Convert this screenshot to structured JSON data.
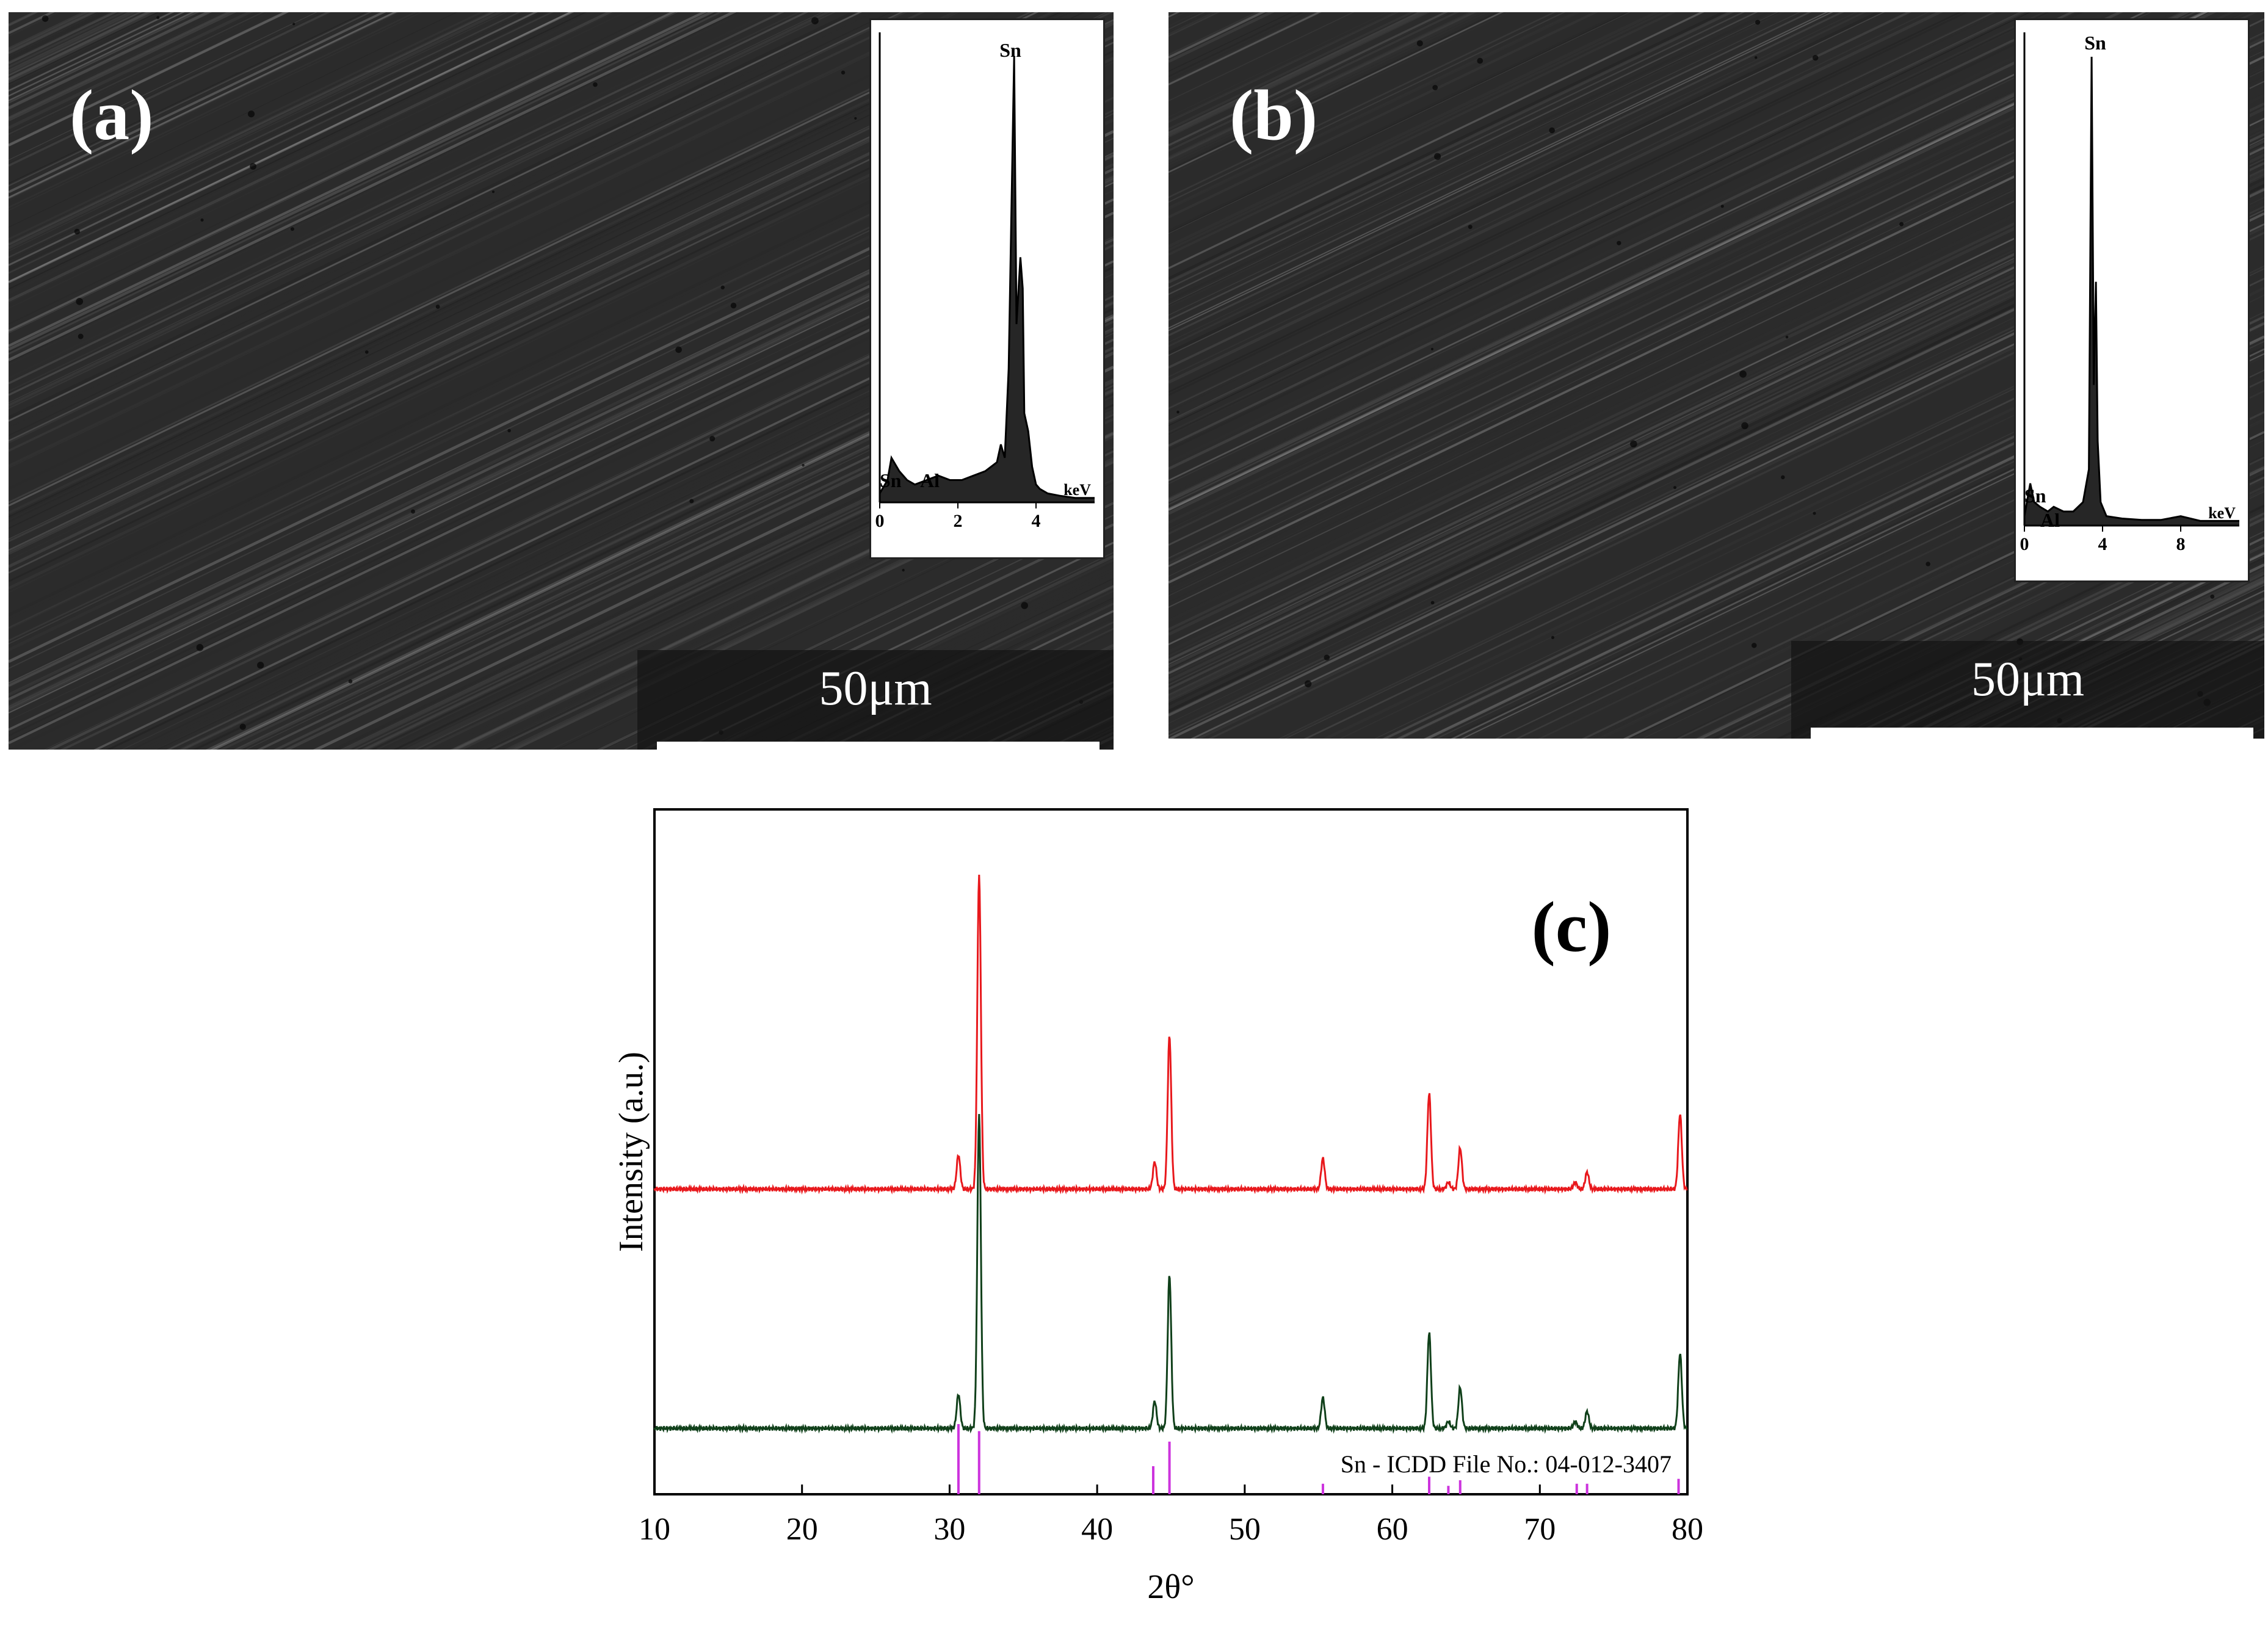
{
  "panels": {
    "a": {
      "label": "(a)",
      "scale_bar": "50μm"
    },
    "b": {
      "label": "(b)",
      "scale_bar": "50μm"
    }
  },
  "inset_a": {
    "type": "line",
    "peak_labels": [
      "Sn",
      "Sn",
      "Al"
    ],
    "xticks": [
      "0",
      "2",
      "4"
    ],
    "xunit": "keV",
    "xlim": [
      0,
      5.5
    ],
    "x": [
      0.0,
      0.2,
      0.3,
      0.5,
      0.7,
      0.9,
      1.2,
      1.5,
      1.8,
      2.1,
      2.4,
      2.7,
      3.0,
      3.1,
      3.2,
      3.3,
      3.35,
      3.44,
      3.5,
      3.6,
      3.66,
      3.7,
      3.8,
      3.9,
      4.0,
      4.1,
      4.3,
      4.6,
      5.0,
      5.5
    ],
    "y": [
      0.02,
      0.05,
      0.1,
      0.07,
      0.05,
      0.04,
      0.05,
      0.06,
      0.05,
      0.05,
      0.06,
      0.07,
      0.09,
      0.13,
      0.1,
      0.3,
      0.55,
      1.0,
      0.4,
      0.55,
      0.48,
      0.2,
      0.16,
      0.08,
      0.04,
      0.03,
      0.02,
      0.015,
      0.01,
      0.01
    ]
  },
  "inset_b": {
    "type": "line",
    "peak_labels": [
      "Sn",
      "Sn",
      "Al"
    ],
    "xticks": [
      "0",
      "4",
      "8"
    ],
    "xunit": "keV",
    "xlim": [
      0,
      11
    ],
    "x": [
      0.0,
      0.3,
      0.5,
      0.8,
      1.2,
      1.5,
      2.0,
      2.5,
      3.0,
      3.3,
      3.44,
      3.55,
      3.66,
      3.75,
      3.9,
      4.2,
      5.0,
      6.0,
      7.0,
      8.0,
      9.0,
      10.0,
      11.0
    ],
    "y": [
      0.02,
      0.09,
      0.05,
      0.04,
      0.03,
      0.04,
      0.03,
      0.03,
      0.05,
      0.12,
      1.0,
      0.3,
      0.52,
      0.18,
      0.05,
      0.02,
      0.015,
      0.012,
      0.012,
      0.02,
      0.01,
      0.01,
      0.01
    ]
  },
  "chart_data": {
    "type": "line",
    "label": "(c)",
    "xlabel": "2θ°",
    "ylabel": "Intensity (a.u.)",
    "xlim": [
      10,
      80
    ],
    "xticks": [
      10,
      20,
      30,
      40,
      50,
      60,
      70,
      80
    ],
    "colors": {
      "top": "#e8181c",
      "bottom": "#10401a",
      "reference": "#cc33dd"
    },
    "series": [
      {
        "peaks": [
          {
            "x": 30.6,
            "y": 0.1
          },
          {
            "x": 32.0,
            "y": 0.92
          },
          {
            "x": 43.9,
            "y": 0.08
          },
          {
            "x": 44.9,
            "y": 0.45
          },
          {
            "x": 55.3,
            "y": 0.09
          },
          {
            "x": 62.5,
            "y": 0.28
          },
          {
            "x": 63.8,
            "y": 0.02
          },
          {
            "x": 64.6,
            "y": 0.12
          },
          {
            "x": 72.4,
            "y": 0.02
          },
          {
            "x": 73.2,
            "y": 0.05
          },
          {
            "x": 79.5,
            "y": 0.22
          }
        ],
        "baseline": 0.0
      },
      {
        "peaks": [
          {
            "x": 30.6,
            "y": 0.1
          },
          {
            "x": 32.0,
            "y": 0.92
          },
          {
            "x": 43.9,
            "y": 0.08
          },
          {
            "x": 44.9,
            "y": 0.45
          },
          {
            "x": 55.3,
            "y": 0.09
          },
          {
            "x": 62.5,
            "y": 0.28
          },
          {
            "x": 63.8,
            "y": 0.02
          },
          {
            "x": 64.6,
            "y": 0.12
          },
          {
            "x": 72.4,
            "y": 0.02
          },
          {
            "x": 73.2,
            "y": 0.05
          },
          {
            "x": 79.5,
            "y": 0.22
          }
        ],
        "baseline": 0.0
      }
    ],
    "reference": {
      "name": "Sn - ICDD File No.: 04-012-3407",
      "lines": [
        {
          "x": 30.6,
          "h": 1.0
        },
        {
          "x": 32.0,
          "h": 0.9
        },
        {
          "x": 43.8,
          "h": 0.4
        },
        {
          "x": 44.9,
          "h": 0.75
        },
        {
          "x": 55.3,
          "h": 0.15
        },
        {
          "x": 62.5,
          "h": 0.25
        },
        {
          "x": 63.8,
          "h": 0.12
        },
        {
          "x": 64.6,
          "h": 0.2
        },
        {
          "x": 72.5,
          "h": 0.15
        },
        {
          "x": 73.2,
          "h": 0.15
        },
        {
          "x": 79.4,
          "h": 0.22
        }
      ]
    }
  }
}
